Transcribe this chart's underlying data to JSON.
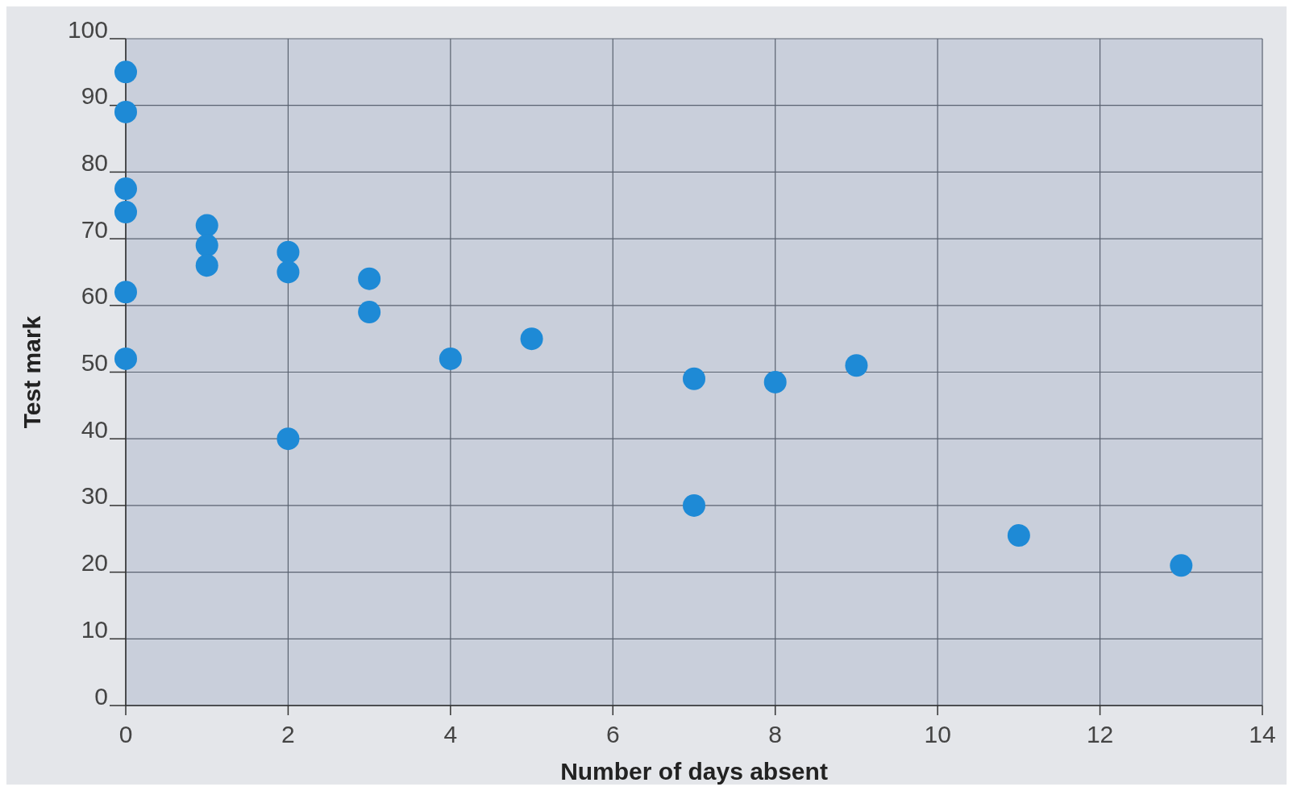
{
  "chart_data": {
    "type": "scatter",
    "xlabel": "Number of days absent",
    "ylabel": "Test mark",
    "series": [
      {
        "color": "#1e8ad6",
        "x": [
          0,
          0,
          0,
          0,
          0,
          0,
          1,
          1,
          1,
          2,
          2,
          2,
          3,
          3,
          4,
          5,
          7,
          7,
          8,
          9,
          11,
          13
        ],
        "values": [
          95,
          89,
          77.5,
          74,
          62,
          52,
          72,
          69,
          66,
          68,
          65,
          40,
          64,
          59,
          52,
          55,
          49,
          30,
          48.5,
          51,
          25.5,
          21
        ]
      }
    ],
    "xlim": [
      0,
      14
    ],
    "xticks": [
      0,
      2,
      4,
      6,
      8,
      10,
      12,
      14
    ],
    "ylim": [
      0,
      100
    ],
    "yticks": [
      0,
      10,
      20,
      30,
      40,
      50,
      60,
      70,
      80,
      90,
      100
    ],
    "grid": true,
    "marker": "circle"
  }
}
